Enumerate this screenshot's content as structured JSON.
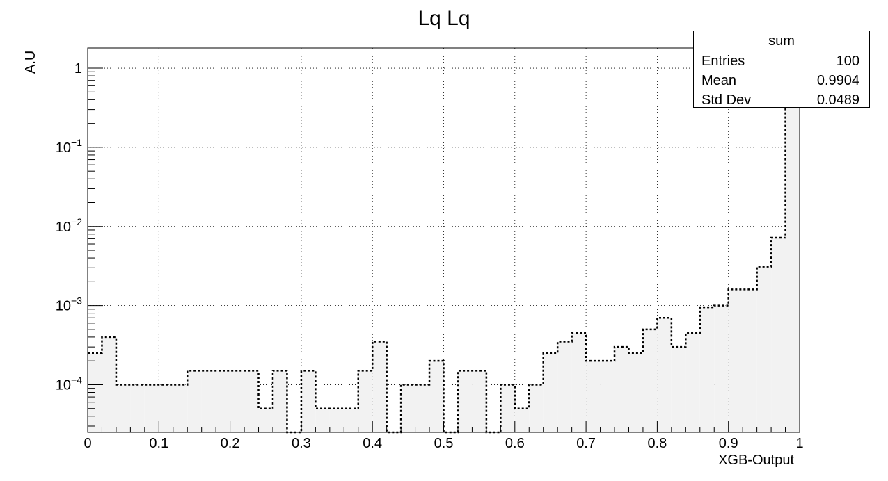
{
  "chart_data": {
    "type": "histogram",
    "title": "Lq Lq",
    "xlabel": "XGB-Output",
    "ylabel": "A.U",
    "xlim": [
      0,
      1
    ],
    "ylog": true,
    "ylim": [
      2.5e-05,
      1.8
    ],
    "grid": true,
    "x_ticks": [
      "0",
      "0.1",
      "0.2",
      "0.3",
      "0.4",
      "0.5",
      "0.6",
      "0.7",
      "0.8",
      "0.9",
      "1"
    ],
    "y_ticks": [
      {
        "value": 0.0001,
        "label": "10",
        "exp": "−4"
      },
      {
        "value": 0.001,
        "label": "10",
        "exp": "−3"
      },
      {
        "value": 0.01,
        "label": "10",
        "exp": "−2"
      },
      {
        "value": 0.1,
        "label": "10",
        "exp": "−1"
      },
      {
        "value": 1,
        "label": "1",
        "exp": ""
      }
    ],
    "bin_width": 0.02,
    "bin_edges_start": 0,
    "series": [
      {
        "fill": "#f2f2f2",
        "line_style": "dotted",
        "values": [
          0.00025,
          0.0004,
          0.0001,
          0.0001,
          0.0001,
          0.0001,
          0.0001,
          0.00015,
          0.00015,
          0.00015,
          0.00015,
          0.00015,
          5e-05,
          0.00015,
          0,
          0.00015,
          5e-05,
          5e-05,
          5e-05,
          0.00015,
          0.00035,
          0,
          0.0001,
          0.0001,
          0.0002,
          0,
          0.00015,
          0.00015,
          0,
          0.0001,
          5e-05,
          0.0001,
          0.00025,
          0.00035,
          0.00045,
          0.0002,
          0.0002,
          0.0003,
          0.00025,
          0.0005,
          0.0007,
          0.0003,
          0.00045,
          0.00095,
          0.001,
          0.0016,
          0.0016,
          0.0031,
          0.0072,
          1.0
        ]
      }
    ],
    "stats_box": {
      "title": "sum",
      "rows": [
        {
          "label": "Entries",
          "value": "100"
        },
        {
          "label": "Mean",
          "value": "0.9904"
        },
        {
          "label": "Std Dev",
          "value": "0.0489"
        }
      ]
    }
  }
}
